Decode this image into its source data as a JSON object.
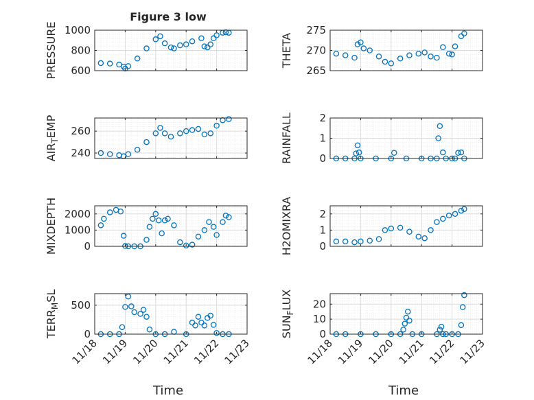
{
  "figure": {
    "title": "Figure 3 low"
  },
  "colors": {
    "marker": "#0072BD",
    "grid": "#dcdcdc",
    "axis": "#262626",
    "background": "#ffffff"
  },
  "x_axis": {
    "label": "Time",
    "ticks": [
      {
        "value": 18,
        "label": "11/18"
      },
      {
        "value": 19,
        "label": "11/19"
      },
      {
        "value": 20,
        "label": "11/20"
      },
      {
        "value": 21,
        "label": "11/21"
      },
      {
        "value": 22,
        "label": "11/22"
      },
      {
        "value": 23,
        "label": "11/23"
      }
    ],
    "range": [
      18,
      23
    ]
  },
  "chart_data": [
    {
      "type": "scatter",
      "marker": "open-circle",
      "grid": true,
      "minor_grid": true,
      "ylabel": "PRESSURE",
      "ylim": [
        600,
        1000
      ],
      "yticks": [
        600,
        800,
        1000
      ],
      "x": [
        18.2,
        18.5,
        18.8,
        18.95,
        19.0,
        19.1,
        19.4,
        19.7,
        20.0,
        20.15,
        20.3,
        20.5,
        20.6,
        20.8,
        21.0,
        21.2,
        21.5,
        21.6,
        21.7,
        21.8,
        21.9,
        22.0,
        22.2,
        22.3,
        22.4
      ],
      "values": [
        675,
        670,
        660,
        640,
        620,
        645,
        720,
        820,
        910,
        940,
        870,
        830,
        820,
        850,
        860,
        890,
        920,
        840,
        830,
        860,
        920,
        950,
        975,
        980,
        975
      ]
    },
    {
      "type": "scatter",
      "marker": "open-circle",
      "grid": true,
      "minor_grid": true,
      "ylabel": "THETA",
      "ylim": [
        265,
        275
      ],
      "yticks": [
        265,
        270,
        275
      ],
      "x": [
        18.2,
        18.5,
        18.8,
        18.9,
        19.0,
        19.1,
        19.3,
        19.6,
        19.8,
        20.0,
        20.3,
        20.6,
        20.9,
        21.1,
        21.3,
        21.5,
        21.7,
        21.9,
        22.0,
        22.1,
        22.3,
        22.4
      ],
      "values": [
        269.2,
        268.8,
        268.2,
        271.5,
        272.0,
        270.5,
        270.0,
        268.5,
        267.2,
        266.8,
        268.0,
        268.8,
        269.2,
        269.5,
        268.5,
        268.2,
        270.8,
        269.2,
        269.0,
        271.0,
        273.5,
        274.2
      ]
    },
    {
      "type": "scatter",
      "marker": "open-circle",
      "grid": true,
      "minor_grid": true,
      "ylabel": "AIR_TEMP",
      "ylim": [
        235,
        272
      ],
      "yticks": [
        240,
        260
      ],
      "x": [
        18.2,
        18.5,
        18.8,
        18.95,
        19.1,
        19.4,
        19.7,
        20.0,
        20.15,
        20.3,
        20.5,
        20.8,
        21.0,
        21.2,
        21.4,
        21.6,
        21.8,
        22.0,
        22.2,
        22.4
      ],
      "values": [
        240,
        239,
        238,
        237,
        239,
        243,
        250,
        258,
        263,
        258,
        255,
        258,
        260,
        261,
        262,
        257,
        258,
        265,
        270,
        271
      ]
    },
    {
      "type": "scatter",
      "marker": "open-circle",
      "grid": true,
      "minor_grid": true,
      "ylabel": "RAINFALL",
      "ylim": [
        0,
        2
      ],
      "yticks": [
        0,
        1,
        2
      ],
      "x": [
        18.2,
        18.5,
        18.8,
        18.85,
        18.9,
        18.95,
        19.0,
        19.5,
        20.0,
        20.1,
        20.5,
        21.0,
        21.3,
        21.5,
        21.55,
        21.6,
        21.7,
        21.8,
        22.0,
        22.1,
        22.2,
        22.3,
        22.4
      ],
      "values": [
        0,
        0,
        0,
        0.25,
        0.65,
        0.3,
        0,
        0,
        0,
        0.28,
        0,
        0,
        0,
        0,
        1.0,
        1.6,
        0.3,
        0,
        0,
        0,
        0.28,
        0.3,
        0
      ]
    },
    {
      "type": "scatter",
      "marker": "open-circle",
      "grid": true,
      "minor_grid": true,
      "ylabel": "MIXDEPTH",
      "ylim": [
        0,
        2500
      ],
      "yticks": [
        0,
        1000,
        2000
      ],
      "x": [
        18.2,
        18.3,
        18.5,
        18.7,
        18.85,
        18.95,
        19.0,
        19.1,
        19.3,
        19.5,
        19.7,
        19.8,
        19.9,
        20.0,
        20.1,
        20.2,
        20.3,
        20.4,
        20.6,
        20.8,
        21.0,
        21.2,
        21.4,
        21.6,
        21.75,
        21.9,
        22.0,
        22.2,
        22.3,
        22.4
      ],
      "values": [
        1300,
        1700,
        2100,
        2250,
        2150,
        650,
        20,
        0,
        0,
        0,
        400,
        1200,
        1700,
        2000,
        1600,
        800,
        1600,
        1700,
        1300,
        250,
        50,
        100,
        600,
        1000,
        1500,
        1200,
        700,
        1500,
        1900,
        1800
      ]
    },
    {
      "type": "scatter",
      "marker": "open-circle",
      "grid": true,
      "minor_grid": true,
      "ylabel": "H2OMIXRA",
      "ylim": [
        0,
        2.5
      ],
      "yticks": [
        0,
        1,
        2
      ],
      "x": [
        18.2,
        18.5,
        18.8,
        19.0,
        19.3,
        19.6,
        19.8,
        20.0,
        20.3,
        20.6,
        20.9,
        21.1,
        21.3,
        21.5,
        21.7,
        21.9,
        22.1,
        22.3,
        22.4
      ],
      "values": [
        0.3,
        0.3,
        0.25,
        0.3,
        0.35,
        0.45,
        1.0,
        1.1,
        1.15,
        0.9,
        0.6,
        0.5,
        1.0,
        1.5,
        1.7,
        1.9,
        2.0,
        2.2,
        2.3
      ]
    },
    {
      "type": "scatter",
      "marker": "open-circle",
      "grid": true,
      "minor_grid": true,
      "ylabel": "TERR_MSL",
      "ylim": [
        0,
        700
      ],
      "yticks": [
        0,
        500
      ],
      "x": [
        18.2,
        18.5,
        18.8,
        18.9,
        19.0,
        19.1,
        19.2,
        19.3,
        19.5,
        19.6,
        19.7,
        19.8,
        20.0,
        20.3,
        20.6,
        21.0,
        21.2,
        21.3,
        21.4,
        21.5,
        21.6,
        21.7,
        21.8,
        21.9,
        22.0,
        22.2,
        22.4
      ],
      "values": [
        0,
        0,
        0,
        120,
        470,
        650,
        480,
        380,
        350,
        420,
        300,
        80,
        0,
        0,
        40,
        0,
        200,
        150,
        300,
        200,
        150,
        280,
        320,
        160,
        20,
        0,
        0
      ]
    },
    {
      "type": "scatter",
      "marker": "open-circle",
      "grid": true,
      "minor_grid": true,
      "ylabel": "SUN_FLUX",
      "ylim": [
        0,
        27
      ],
      "yticks": [
        0,
        10,
        20
      ],
      "x": [
        18.2,
        18.5,
        19.0,
        19.5,
        20.0,
        20.3,
        20.4,
        20.45,
        20.5,
        20.55,
        20.6,
        20.7,
        21.0,
        21.5,
        21.6,
        21.65,
        21.7,
        21.8,
        22.0,
        22.2,
        22.3,
        22.35,
        22.4
      ],
      "values": [
        0,
        0,
        0,
        0,
        0,
        0,
        3,
        7,
        11,
        15,
        9,
        0,
        0,
        0,
        3,
        5,
        0,
        0,
        0,
        0,
        6,
        18,
        26
      ]
    }
  ]
}
